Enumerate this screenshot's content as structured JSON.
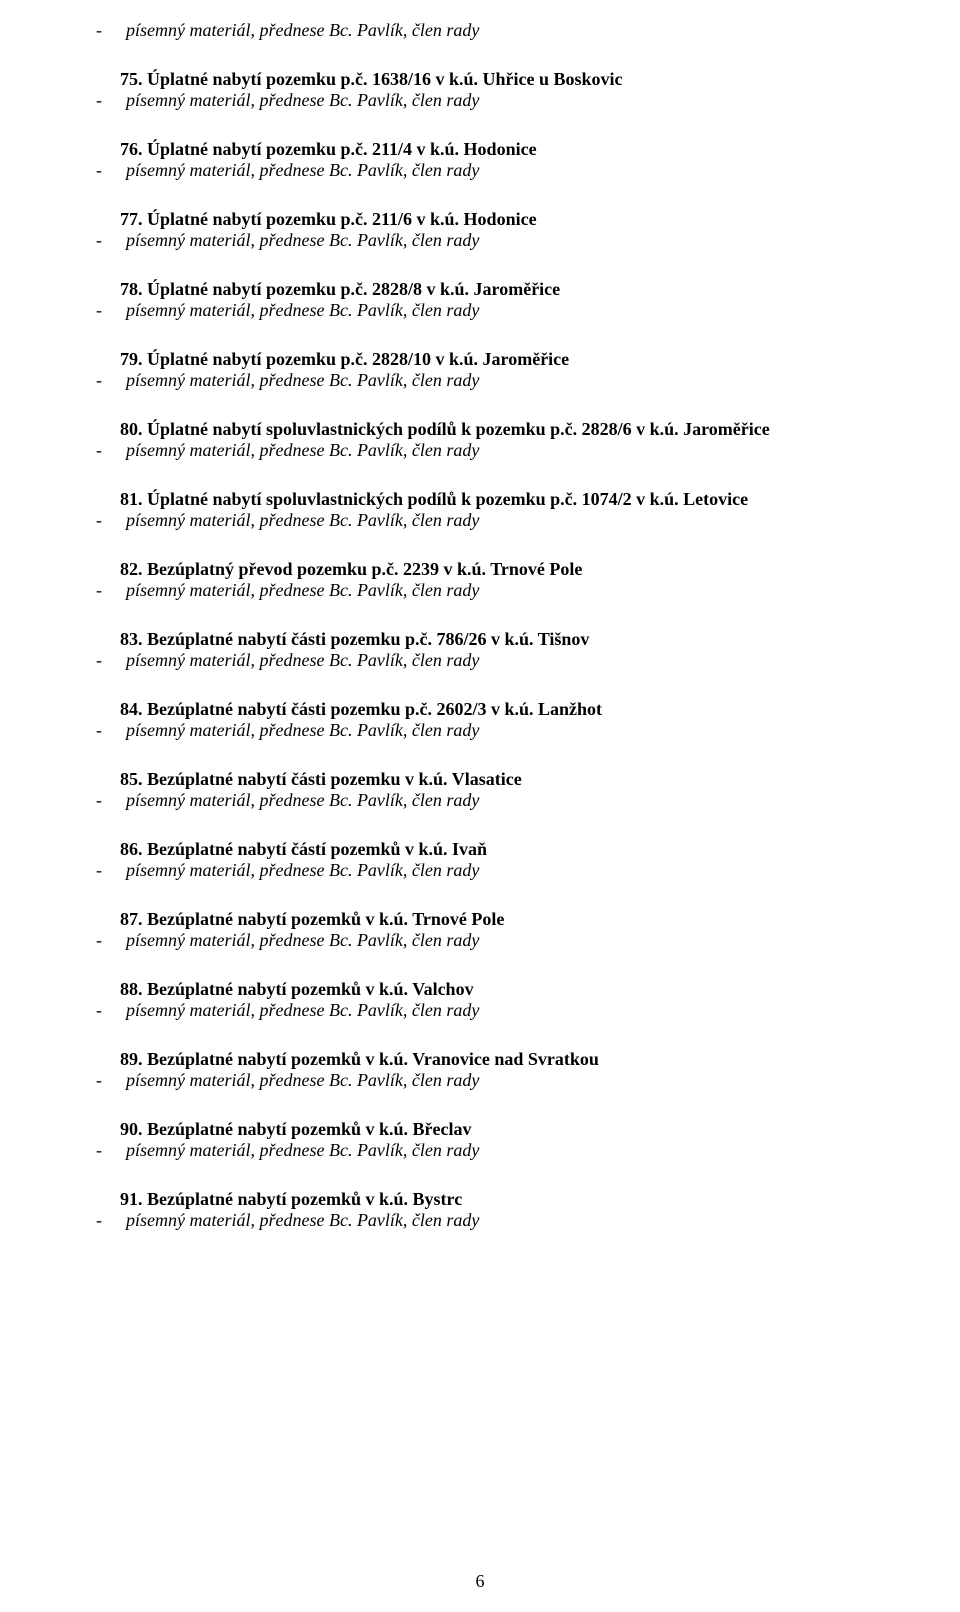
{
  "dash": "-",
  "firstSubline": "písemný materiál, přednese Bc. Pavlík, člen rady",
  "subline": "písemný materiál, přednese Bc. Pavlík, člen rady",
  "items": [
    {
      "heading": "75. Úplatné nabytí pozemku p.č. 1638/16 v k.ú. Uhřice u Boskovic"
    },
    {
      "heading": "76. Úplatné nabytí pozemku p.č. 211/4 v k.ú. Hodonice"
    },
    {
      "heading": "77. Úplatné nabytí pozemku p.č. 211/6 v k.ú. Hodonice"
    },
    {
      "heading": "78. Úplatné nabytí pozemku p.č. 2828/8 v k.ú. Jaroměřice"
    },
    {
      "heading": "79. Úplatné nabytí pozemku p.č. 2828/10 v k.ú. Jaroměřice"
    },
    {
      "heading": "80. Úplatné nabytí spoluvlastnických podílů k pozemku p.č. 2828/6 v k.ú. Jaroměřice"
    },
    {
      "heading": "81. Úplatné nabytí spoluvlastnických podílů k pozemku p.č. 1074/2 v k.ú. Letovice"
    },
    {
      "heading": "82. Bezúplatný převod pozemku p.č. 2239 v k.ú. Trnové Pole"
    },
    {
      "heading": "83. Bezúplatné nabytí části pozemku p.č. 786/26 v k.ú. Tišnov"
    },
    {
      "heading": "84. Bezúplatné nabytí části pozemku p.č. 2602/3 v k.ú. Lanžhot"
    },
    {
      "heading": "85. Bezúplatné nabytí části pozemku v k.ú. Vlasatice"
    },
    {
      "heading": "86. Bezúplatné nabytí částí pozemků v k.ú. Ivaň"
    },
    {
      "heading": "87. Bezúplatné nabytí pozemků v k.ú. Trnové Pole"
    },
    {
      "heading": "88. Bezúplatné nabytí pozemků v k.ú. Valchov"
    },
    {
      "heading": "89. Bezúplatné nabytí pozemků v k.ú. Vranovice nad Svratkou"
    },
    {
      "heading": "90. Bezúplatné nabytí pozemků v k.ú. Břeclav"
    },
    {
      "heading": "91. Bezúplatné nabytí pozemků v k.ú. Bystrc"
    }
  ],
  "pageNumber": "6"
}
